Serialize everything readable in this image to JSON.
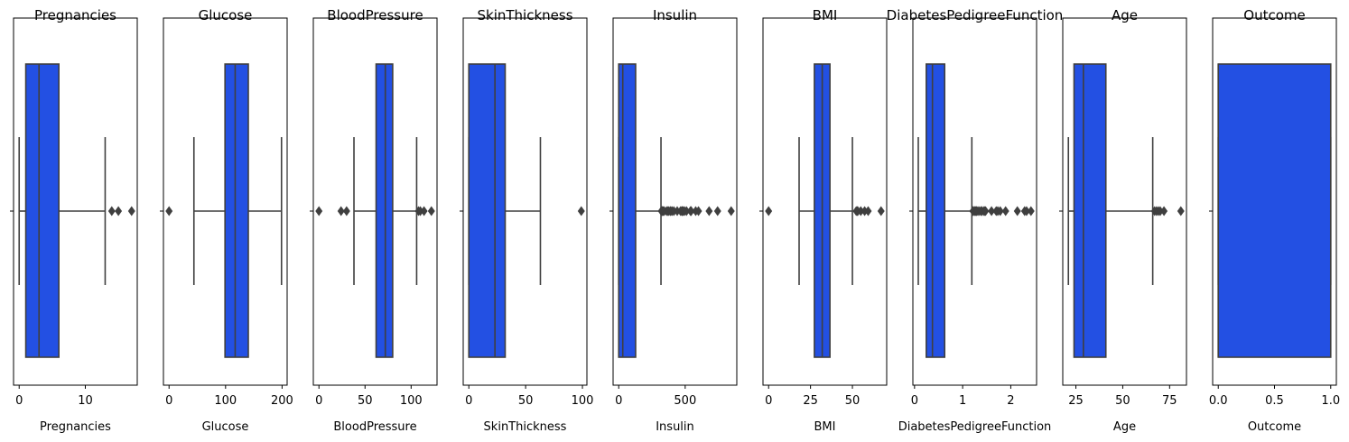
{
  "colors": {
    "box_fill": "#2350e3",
    "line": "#3f3f3f",
    "frame": "#000000",
    "background": "#ffffff"
  },
  "chart_data": [
    {
      "type": "box",
      "title": "Pregnancies",
      "xlabel": "Pregnancies",
      "xlim": [
        -0.85,
        17.85
      ],
      "ticks": [
        0,
        10
      ],
      "tick_labels": [
        "0",
        "10"
      ],
      "box": {
        "whisker_low": 0,
        "q1": 1,
        "median": 3,
        "q3": 6,
        "whisker_high": 13,
        "outliers": [
          14,
          15,
          17
        ]
      }
    },
    {
      "type": "box",
      "title": "Glucose",
      "xlabel": "Glucose",
      "xlim": [
        -9.95,
        208.95
      ],
      "ticks": [
        0,
        100,
        200
      ],
      "tick_labels": [
        "0",
        "100",
        "200"
      ],
      "box": {
        "whisker_low": 44,
        "q1": 99,
        "median": 117,
        "q3": 140.25,
        "whisker_high": 199,
        "outliers": [
          0
        ]
      }
    },
    {
      "type": "box",
      "title": "BloodPressure",
      "xlabel": "BloodPressure",
      "xlim": [
        -6.1,
        128.1
      ],
      "ticks": [
        0,
        50,
        100
      ],
      "tick_labels": [
        "0",
        "50",
        "100"
      ],
      "box": {
        "whisker_low": 38,
        "q1": 62,
        "median": 72,
        "q3": 80,
        "whisker_high": 106,
        "outliers": [
          0,
          24,
          30,
          108,
          110,
          114,
          122
        ]
      }
    },
    {
      "type": "box",
      "title": "SkinThickness",
      "xlabel": "SkinThickness",
      "xlim": [
        -4.95,
        103.95
      ],
      "ticks": [
        0,
        50,
        100
      ],
      "tick_labels": [
        "0",
        "50",
        "100"
      ],
      "box": {
        "whisker_low": 0,
        "q1": 0,
        "median": 23,
        "q3": 32,
        "whisker_high": 63,
        "outliers": [
          99
        ]
      }
    },
    {
      "type": "box",
      "title": "Insulin",
      "xlabel": "Insulin",
      "xlim": [
        -42.3,
        888.3
      ],
      "ticks": [
        0,
        500
      ],
      "tick_labels": [
        "0",
        "500"
      ],
      "box": {
        "whisker_low": 0,
        "q1": 0,
        "median": 30.5,
        "q3": 127.25,
        "whisker_high": 318,
        "outliers": [
          321,
          325,
          326,
          330,
          335,
          342,
          360,
          370,
          375,
          387,
          392,
          402,
          415,
          440,
          465,
          474,
          478,
          480,
          485,
          495,
          510,
          540,
          543,
          545,
          579,
          600,
          680,
          744,
          846
        ]
      }
    },
    {
      "type": "box",
      "title": "BMI",
      "xlabel": "BMI",
      "xlim": [
        -3.355,
        70.455
      ],
      "ticks": [
        0,
        25,
        50
      ],
      "tick_labels": [
        "0",
        "25",
        "50"
      ],
      "box": {
        "whisker_low": 18.2,
        "q1": 27.3,
        "median": 32,
        "q3": 36.6,
        "whisker_high": 50,
        "outliers": [
          0,
          52.3,
          52.9,
          53.2,
          55,
          57.3,
          59.4,
          67.1
        ]
      }
    },
    {
      "type": "box",
      "title": "DiabetesPedigreeFunction",
      "xlabel": "DiabetesPedigreeFunction",
      "xlim": [
        -0.0344,
        2.5364
      ],
      "ticks": [
        0,
        1,
        2
      ],
      "tick_labels": [
        "0",
        "1",
        "2"
      ],
      "box": {
        "whisker_low": 0.078,
        "q1": 0.24375,
        "median": 0.3725,
        "q3": 0.62625,
        "whisker_high": 1.191,
        "outliers": [
          1.213,
          1.222,
          1.224,
          1.251,
          1.258,
          1.268,
          1.282,
          1.292,
          1.318,
          1.353,
          1.39,
          1.394,
          1.4,
          1.441,
          1.461,
          1.476,
          1.6,
          1.698,
          1.731,
          1.781,
          1.893,
          2.137,
          2.288,
          2.329,
          2.42
        ]
      }
    },
    {
      "type": "box",
      "title": "Age",
      "xlabel": "Age",
      "xlim": [
        18,
        84
      ],
      "ticks": [
        25,
        50,
        75
      ],
      "tick_labels": [
        "25",
        "50",
        "75"
      ],
      "box": {
        "whisker_low": 21,
        "q1": 24,
        "median": 29,
        "q3": 41,
        "whisker_high": 66,
        "outliers": [
          67,
          68,
          69,
          70,
          72,
          81
        ]
      }
    },
    {
      "type": "box",
      "title": "Outcome",
      "xlabel": "Outcome",
      "xlim": [
        -0.05,
        1.05
      ],
      "ticks": [
        0,
        0.5,
        1
      ],
      "tick_labels": [
        "0.0",
        "0.5",
        "1.0"
      ],
      "box": {
        "whisker_low": 0,
        "q1": 0,
        "median": 0,
        "q3": 1,
        "whisker_high": 1,
        "outliers": []
      }
    }
  ]
}
